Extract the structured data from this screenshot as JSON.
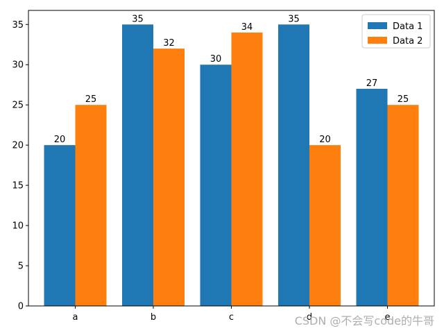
{
  "chart_data": {
    "type": "bar",
    "categories": [
      "a",
      "b",
      "c",
      "d",
      "e"
    ],
    "series": [
      {
        "name": "Data 1",
        "values": [
          20,
          35,
          30,
          35,
          27
        ],
        "color": "#1f77b4"
      },
      {
        "name": "Data 2",
        "values": [
          25,
          32,
          34,
          20,
          25
        ],
        "color": "#ff7f0e"
      }
    ],
    "ylim": [
      0,
      36.75
    ],
    "yticks": [
      0,
      5,
      10,
      15,
      20,
      25,
      30,
      35
    ],
    "legend_position": "top-right",
    "grid": false
  },
  "watermark": "CSDN @不会写code的牛哥"
}
